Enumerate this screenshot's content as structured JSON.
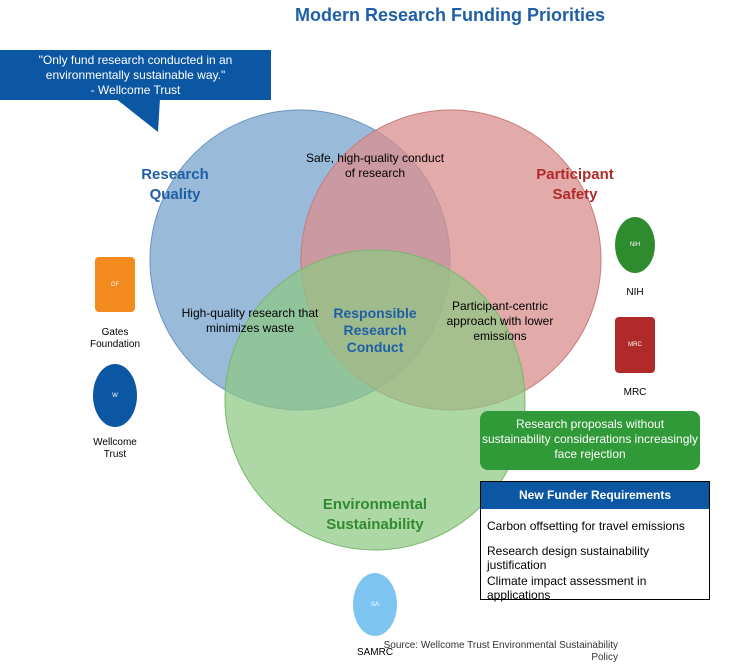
{
  "title": "Modern Research Funding Priorities",
  "quote": {
    "line1": "\"Only fund research conducted in an",
    "line2": "environmentally sustainable way.\"",
    "line3": "- Wellcome Trust"
  },
  "circles": {
    "quality": {
      "line1": "Research",
      "line2": "Quality",
      "fill": "#7ea7cf",
      "label_color": "#1f5fa6"
    },
    "safety": {
      "line1": "Participant",
      "line2": "Safety",
      "fill": "#d98e8e",
      "label_color": "#b02a2a"
    },
    "environment": {
      "line1": "Environmental",
      "line2": "Sustainability",
      "fill": "#8fc784",
      "label_color": "#2e8b2e"
    }
  },
  "overlaps": {
    "quality_safety": {
      "line1": "Safe, high-quality conduct",
      "line2": "of research"
    },
    "quality_environment": {
      "line1": "High-quality research that",
      "line2": "minimizes waste"
    },
    "safety_environment": {
      "line1": "Participant-centric",
      "line2": "approach with lower",
      "line3": "emissions"
    },
    "center": {
      "line1": "Responsible",
      "line2": "Research",
      "line3": "Conduct"
    }
  },
  "funders": {
    "gates": {
      "abbr": "GF",
      "name_line1": "Gates",
      "name_line2": "Foundation",
      "color": "#f28a1e"
    },
    "wellcome": {
      "abbr": "W",
      "name_line1": "Wellcome",
      "name_line2": "Trust",
      "color": "#0b57a4"
    },
    "nih": {
      "abbr": "NIH",
      "name": "NIH",
      "color": "#2e8b2e"
    },
    "mrc": {
      "abbr": "MRC",
      "name": "MRC",
      "color": "#b02a2a"
    },
    "samrc": {
      "abbr": "SA",
      "name": "SAMRC",
      "color": "#7ec4f0"
    }
  },
  "rejection_note": {
    "line1": "Research proposals without",
    "line2": "sustainability considerations increasingly",
    "line3": "face rejection"
  },
  "requirements": {
    "heading": "New Funder Requirements",
    "items": [
      {
        "line1": "Carbon offsetting for travel emissions"
      },
      {
        "line1": "Research design sustainability",
        "line2": "justification"
      },
      {
        "line1": "Climate impact assessment in",
        "line2": "applications"
      }
    ]
  },
  "source": {
    "line1": "Source: Wellcome Trust Environmental Sustainability",
    "line2": "Policy"
  }
}
